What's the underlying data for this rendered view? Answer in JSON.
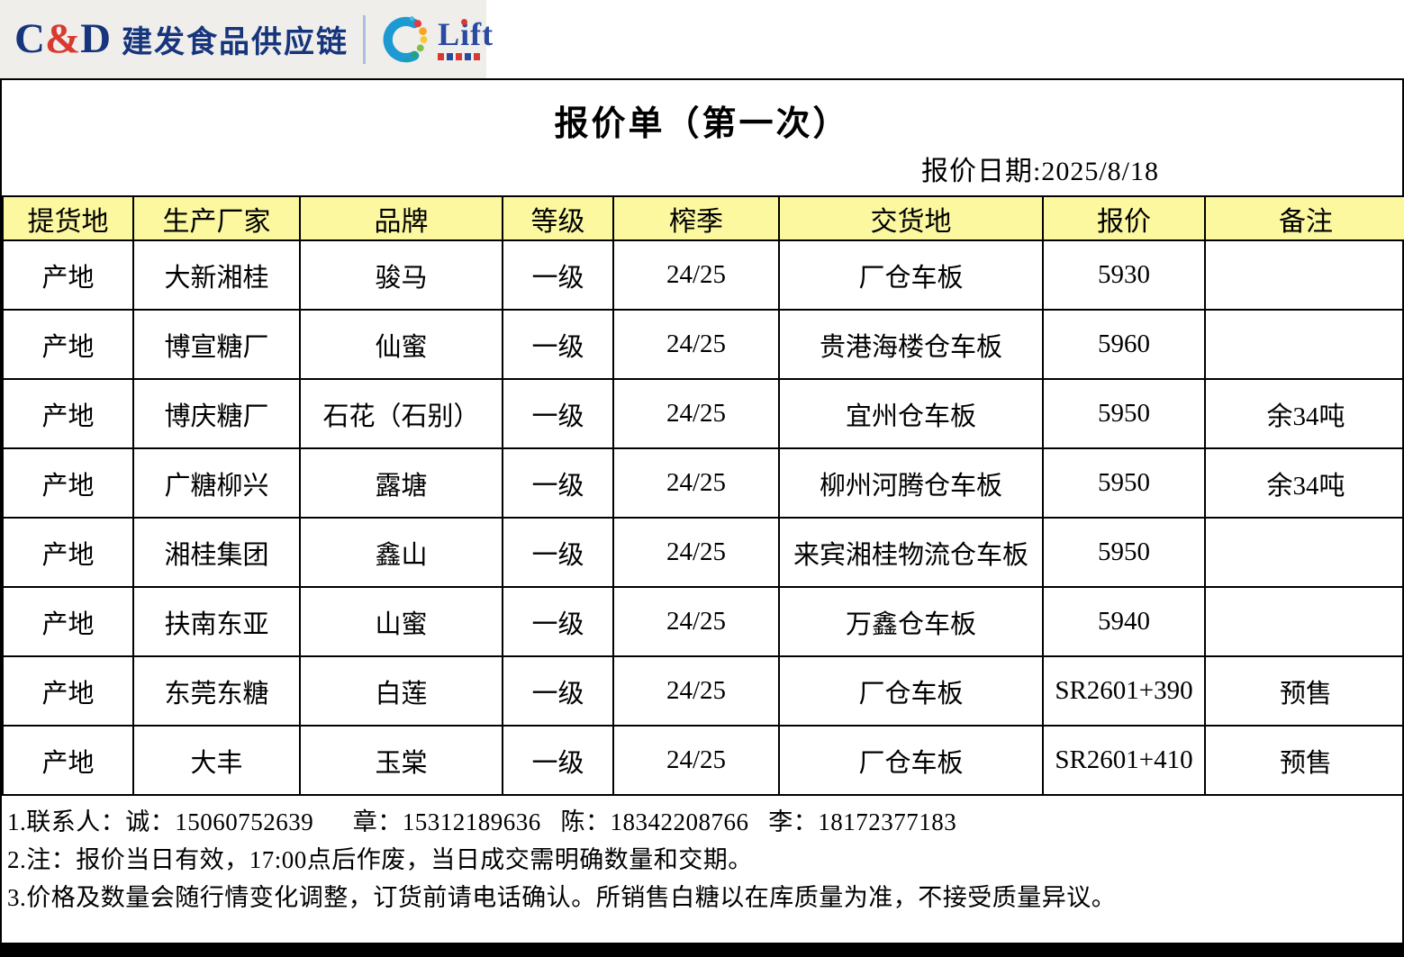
{
  "colors": {
    "cd_blue": "#17357c",
    "cd_red": "#d93a2f",
    "lift_blue": "#2a4aa1",
    "swirl_blue": "#1d9ad2",
    "header_yellow": "#fbf8a0"
  },
  "logo": {
    "cd_c": "C",
    "cd_amp": "&",
    "cd_d": "D",
    "company": "建发食品供应链",
    "lift": "Lift"
  },
  "header": {
    "title": "报价单（第一次）",
    "date": "报价日期:2025/8/18"
  },
  "table": {
    "headers": [
      "提货地",
      "生产厂家",
      "品牌",
      "等级",
      "榨季",
      "交货地",
      "报价",
      "备注"
    ],
    "rows": [
      [
        "产地",
        "大新湘桂",
        "骏马",
        "一级",
        "24/25",
        "厂仓车板",
        "5930",
        ""
      ],
      [
        "产地",
        "博宣糖厂",
        "仙蜜",
        "一级",
        "24/25",
        "贵港海楼仓车板",
        "5960",
        ""
      ],
      [
        "产地",
        "博庆糖厂",
        "石花（石别）",
        "一级",
        "24/25",
        "宜州仓车板",
        "5950",
        "余34吨"
      ],
      [
        "产地",
        "广糖柳兴",
        "露塘",
        "一级",
        "24/25",
        "柳州河腾仓车板",
        "5950",
        "余34吨"
      ],
      [
        "产地",
        "湘桂集团",
        "鑫山",
        "一级",
        "24/25",
        "来宾湘桂物流仓车板",
        "5950",
        ""
      ],
      [
        "产地",
        "扶南东亚",
        "山蜜",
        "一级",
        "24/25",
        "万鑫仓车板",
        "5940",
        ""
      ],
      [
        "产地",
        "东莞东糖",
        "白莲",
        "一级",
        "24/25",
        "厂仓车板",
        "SR2601+390",
        "预售"
      ],
      [
        "产地",
        "大丰",
        "玉棠",
        "一级",
        "24/25",
        "厂仓车板",
        "SR2601+410",
        "预售"
      ]
    ]
  },
  "notes": [
    "1.联系人：诚：15060752639      章：15312189636   陈：18342208766   李：18172377183",
    "2.注：报价当日有效，17:00点后作废，当日成交需明确数量和交期。",
    "3.价格及数量会随行情变化调整，订货前请电话确认。所销售白糖以在库质量为准，不接受质量异议。"
  ]
}
